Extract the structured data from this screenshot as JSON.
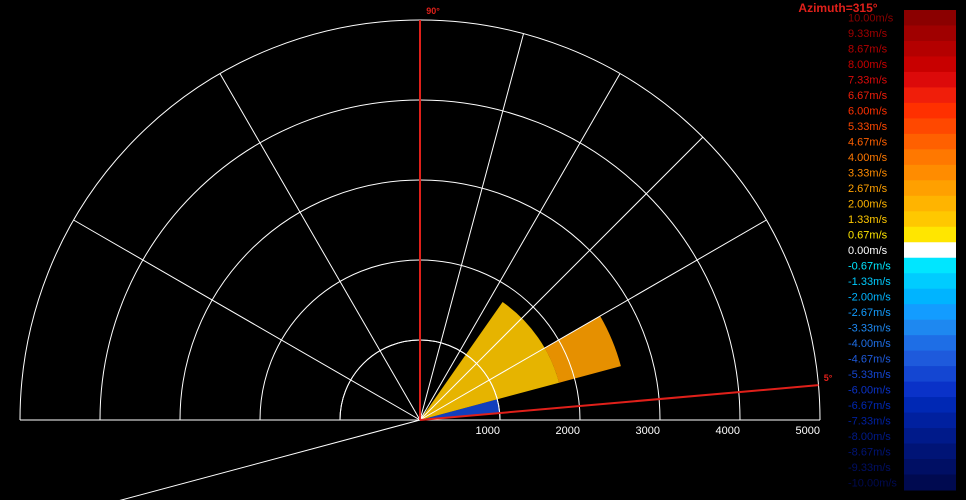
{
  "title": "Azimuth=315°",
  "chart_data": {
    "type": "polar-sector",
    "range_rings": [
      1000,
      2000,
      3000,
      4000,
      5000
    ],
    "range_labels": [
      "1000",
      "2000",
      "3000",
      "4000",
      "5000"
    ],
    "max_range": 5000,
    "sector": {
      "start_label": "90°",
      "end_label": "5°"
    },
    "colorbar": {
      "labels": [
        "10.00m/s",
        "9.33m/s",
        "8.67m/s",
        "8.00m/s",
        "7.33m/s",
        "6.67m/s",
        "6.00m/s",
        "5.33m/s",
        "4.67m/s",
        "4.00m/s",
        "3.33m/s",
        "2.67m/s",
        "2.00m/s",
        "1.33m/s",
        "0.67m/s",
        "0.00m/s",
        "-0.67m/s",
        "-1.33m/s",
        "-2.00m/s",
        "-2.67m/s",
        "-3.33m/s",
        "-4.00m/s",
        "-4.67m/s",
        "-5.33m/s",
        "-6.00m/s",
        "-6.67m/s",
        "-7.33m/s",
        "-8.00m/s",
        "-8.67m/s",
        "-9.33m/s",
        "-10.00m/s"
      ],
      "colors": [
        "#8b0000",
        "#a00000",
        "#b40000",
        "#c80000",
        "#dc0a0a",
        "#f01e0a",
        "#ff3000",
        "#ff4800",
        "#ff6000",
        "#ff7800",
        "#ff8c00",
        "#ffa000",
        "#ffb400",
        "#ffc800",
        "#ffe600",
        "#ffffff",
        "#00e6ff",
        "#00ccff",
        "#00b4ff",
        "#139cff",
        "#1e88f0",
        "#1e6ee6",
        "#1e5adc",
        "#1446d2",
        "#0a32c8",
        "#0028b4",
        "#00209f",
        "#001a8a",
        "#001476",
        "#000f64",
        "#000a50"
      ]
    },
    "velocity_field": [
      {
        "range_from": 0,
        "range_to": 1000,
        "bearing_from": 5,
        "bearing_to": 15,
        "velocity": -5.33
      },
      {
        "range_from": 0,
        "range_to": 1800,
        "bearing_from": 15,
        "bearing_to": 55,
        "velocity": 1.33
      },
      {
        "range_from": 1800,
        "range_to": 2600,
        "bearing_from": 15,
        "bearing_to": 30,
        "velocity": 2.67
      }
    ]
  }
}
